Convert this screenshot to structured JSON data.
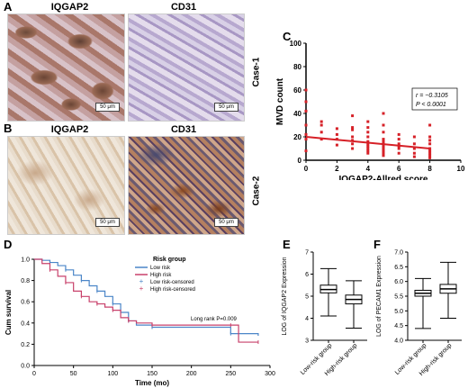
{
  "panels": {
    "A": {
      "letter": "A",
      "left_title": "IQGAP2",
      "right_title": "CD31",
      "scale": "50 μm"
    },
    "B": {
      "letter": "B",
      "left_title": "IQGAP2",
      "right_title": "CD31",
      "scale": "50 μm"
    },
    "case1": "Case-1",
    "case2": "Case-2",
    "C": {
      "letter": "C"
    },
    "D": {
      "letter": "D"
    },
    "E": {
      "letter": "E"
    },
    "F": {
      "letter": "F"
    }
  },
  "chart_data": [
    {
      "id": "C",
      "type": "scatter",
      "xlabel": "IQGAP2-Allred score",
      "ylabel": "MVD count",
      "xlim": [
        0,
        10
      ],
      "ylim": [
        0,
        100
      ],
      "xticks": [
        0,
        2,
        4,
        6,
        8,
        10
      ],
      "yticks": [
        0,
        20,
        40,
        60,
        80,
        100
      ],
      "annotation_r": "r = −0.3105",
      "annotation_p": "P < 0.0001",
      "regression": {
        "x": [
          0,
          8
        ],
        "y": [
          20,
          10
        ]
      },
      "x": [
        0,
        0,
        0,
        0,
        0,
        0,
        0,
        1,
        1,
        1,
        1,
        2,
        2,
        2,
        2,
        3,
        3,
        3,
        3,
        3,
        3,
        3,
        4,
        4,
        4,
        4,
        4,
        4,
        4,
        4,
        4,
        4,
        5,
        5,
        5,
        5,
        5,
        5,
        5,
        5,
        5,
        5,
        5,
        6,
        6,
        6,
        6,
        6,
        6,
        7,
        7,
        7,
        7,
        7,
        8,
        8,
        8,
        8,
        8,
        8,
        8,
        8,
        8
      ],
      "y": [
        60,
        50,
        42,
        30,
        22,
        18,
        8,
        33,
        30,
        24,
        18,
        27,
        22,
        18,
        13,
        38,
        28,
        26,
        20,
        17,
        14,
        10,
        33,
        28,
        24,
        20,
        16,
        14,
        12,
        10,
        8,
        6,
        40,
        30,
        24,
        18,
        16,
        14,
        12,
        10,
        8,
        6,
        4,
        22,
        18,
        14,
        12,
        10,
        6,
        20,
        14,
        10,
        6,
        3,
        30,
        20,
        17,
        14,
        10,
        8,
        6,
        4,
        2
      ],
      "color": "#d62027"
    },
    {
      "id": "D",
      "type": "line",
      "xlabel": "Time (mo)",
      "ylabel": "Cum survival",
      "xlim": [
        0,
        300
      ],
      "ylim": [
        0,
        1.0
      ],
      "xticks": [
        0,
        50,
        100,
        150,
        200,
        250,
        300
      ],
      "yticks": [
        0.0,
        0.2,
        0.4,
        0.6,
        0.8,
        1.0
      ],
      "legend_title": "Risk group",
      "legend": [
        "Low risk",
        "High risk",
        "Low risk-censored",
        "High risk-censored"
      ],
      "annotation": "Long rank P=0.009",
      "series": [
        {
          "name": "Low risk",
          "color": "#4b86c8",
          "x": [
            0,
            10,
            20,
            30,
            40,
            50,
            60,
            70,
            80,
            90,
            100,
            110,
            120,
            130,
            150,
            200,
            250,
            285
          ],
          "y": [
            1.0,
            0.99,
            0.97,
            0.94,
            0.9,
            0.85,
            0.8,
            0.75,
            0.7,
            0.65,
            0.58,
            0.5,
            0.42,
            0.38,
            0.36,
            0.36,
            0.3,
            0.28
          ]
        },
        {
          "name": "High risk",
          "color": "#c8416b",
          "x": [
            0,
            10,
            20,
            30,
            40,
            50,
            60,
            70,
            80,
            90,
            100,
            110,
            120,
            130,
            150,
            200,
            250,
            260,
            285
          ],
          "y": [
            1.0,
            0.96,
            0.9,
            0.84,
            0.78,
            0.7,
            0.65,
            0.6,
            0.58,
            0.55,
            0.52,
            0.45,
            0.42,
            0.4,
            0.38,
            0.38,
            0.38,
            0.22,
            0.22
          ]
        }
      ]
    },
    {
      "id": "E",
      "type": "box",
      "ylabel": "LOG of IQGAP2 Expression",
      "ylim": [
        3,
        7
      ],
      "yticks": [
        3,
        4,
        5,
        6,
        7
      ],
      "categories": [
        "Low-risk group",
        "High-risk group"
      ],
      "boxes": [
        {
          "min": 4.1,
          "q1": 5.15,
          "median": 5.3,
          "q3": 5.5,
          "max": 6.25
        },
        {
          "min": 3.55,
          "q1": 4.65,
          "median": 4.85,
          "q3": 5.05,
          "max": 5.7
        }
      ]
    },
    {
      "id": "F",
      "type": "box",
      "ylabel": "LOG of PECAM1 Expression",
      "ylim": [
        4.0,
        7.0
      ],
      "yticks": [
        4.0,
        4.5,
        5.0,
        5.5,
        6.0,
        6.5,
        7.0
      ],
      "categories": [
        "Low-risk group",
        "High-risk group"
      ],
      "boxes": [
        {
          "min": 4.4,
          "q1": 5.5,
          "median": 5.6,
          "q3": 5.7,
          "max": 6.1
        },
        {
          "min": 4.75,
          "q1": 5.6,
          "median": 5.75,
          "q3": 5.9,
          "max": 6.65
        }
      ]
    }
  ]
}
